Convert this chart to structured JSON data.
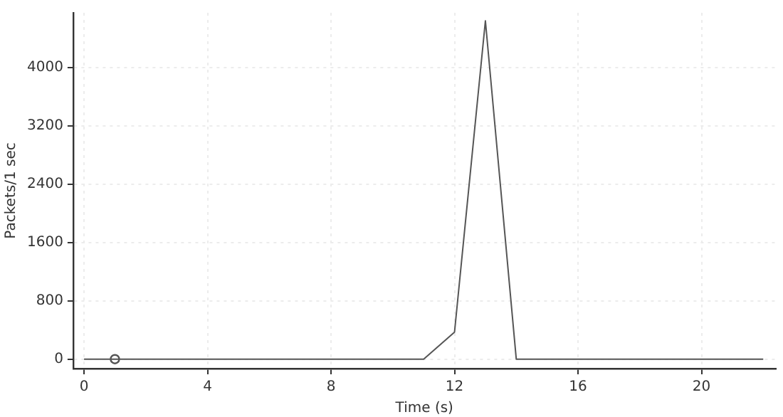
{
  "chart_data": {
    "type": "line",
    "xlabel": "Time (s)",
    "ylabel": "Packets/1 sec",
    "x": [
      0,
      1,
      2,
      3,
      4,
      5,
      6,
      7,
      8,
      9,
      10,
      11,
      12,
      13,
      14,
      15,
      16,
      17,
      18,
      19,
      20,
      21,
      22
    ],
    "series": [
      {
        "color": "#555555",
        "values": [
          0,
          0,
          0,
          0,
          0,
          0,
          0,
          0,
          0,
          0,
          0,
          0,
          370,
          4640,
          0,
          0,
          0,
          0,
          0,
          0,
          0,
          0,
          0
        ]
      },
      {
        "type": "scatter",
        "color": "#555555",
        "marker": "circle",
        "x": [
          1
        ],
        "values": [
          0
        ]
      }
    ],
    "xlim": [
      -0.35,
      22.4
    ],
    "xticks": [
      0,
      4,
      8,
      12,
      16,
      20
    ],
    "ylim": [
      -130,
      4750
    ],
    "yticks": [
      0,
      800,
      1600,
      2400,
      3200,
      4000
    ],
    "grid": true,
    "line_style": "solid",
    "legend": false
  }
}
